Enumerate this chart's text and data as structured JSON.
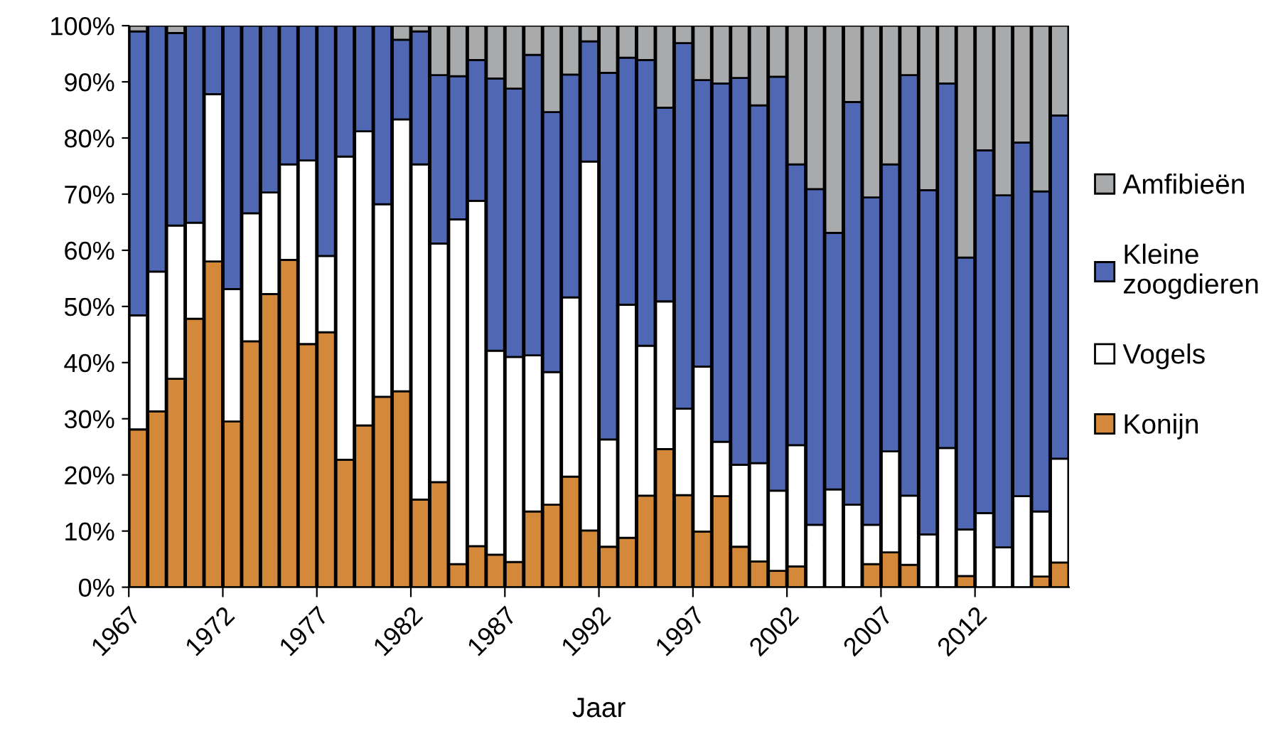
{
  "chart_data": {
    "type": "bar",
    "stacked": true,
    "xlabel": "Jaar",
    "categories": [
      "1967",
      null,
      null,
      null,
      null,
      "1972",
      null,
      null,
      null,
      null,
      "1977",
      null,
      null,
      null,
      null,
      "1982",
      null,
      null,
      null,
      null,
      "1987",
      null,
      null,
      null,
      null,
      "1992",
      null,
      null,
      null,
      null,
      "1997",
      null,
      null,
      null,
      null,
      "2002",
      null,
      null,
      null,
      null,
      "2007",
      null,
      null,
      null,
      null,
      "2012",
      null,
      null,
      null,
      null
    ],
    "series": [
      {
        "name": "Konijn",
        "color": "#d4883a",
        "values": [
          28.1,
          31.3,
          37.1,
          47.8,
          58.0,
          29.5,
          43.8,
          52.2,
          58.3,
          43.3,
          45.4,
          22.7,
          28.8,
          33.9,
          34.9,
          15.6,
          18.7,
          4.1,
          7.3,
          5.8,
          4.5,
          13.5,
          14.7,
          19.7,
          10.1,
          7.2,
          8.8,
          16.3,
          24.6,
          16.4,
          9.9,
          16.2,
          7.2,
          4.6,
          2.9,
          3.7,
          0,
          0,
          0,
          4.1,
          6.2,
          4.0,
          0,
          0,
          2.0,
          0,
          0,
          0,
          1.9,
          4.4
        ]
      },
      {
        "name": "Vogels",
        "color": "#ffffff",
        "values": [
          20.3,
          24.9,
          27.3,
          17.1,
          29.8,
          23.6,
          22.8,
          18.1,
          17.0,
          32.7,
          13.6,
          54.0,
          52.4,
          34.3,
          48.4,
          59.7,
          42.5,
          61.4,
          61.5,
          36.3,
          36.5,
          27.8,
          23.6,
          31.9,
          65.7,
          19.1,
          41.5,
          26.7,
          26.3,
          15.4,
          29.4,
          9.7,
          14.6,
          17.5,
          14.3,
          21.6,
          11.1,
          17.4,
          14.7,
          7.0,
          18.0,
          12.3,
          9.4,
          24.8,
          8.3,
          13.2,
          7.1,
          16.2,
          11.6,
          18.5
        ]
      },
      {
        "name": "Kleine\nzoogdieren",
        "color": "#5068b4",
        "values": [
          50.6,
          43.8,
          34.3,
          35.1,
          12.2,
          46.9,
          33.4,
          29.7,
          24.7,
          24.0,
          41.0,
          23.3,
          18.8,
          31.8,
          14.2,
          23.7,
          30.0,
          25.5,
          25.1,
          48.5,
          47.8,
          53.5,
          46.3,
          39.7,
          21.4,
          65.3,
          44.0,
          50.9,
          34.5,
          65.1,
          51.0,
          63.8,
          68.9,
          63.7,
          73.7,
          50.0,
          59.8,
          45.7,
          71.7,
          58.3,
          51.1,
          74.9,
          61.3,
          64.9,
          48.4,
          64.6,
          62.7,
          63.0,
          57.0,
          61.1
        ]
      },
      {
        "name": "Amfibieën",
        "color": "#a8aaab",
        "values": [
          1.0,
          0,
          1.3,
          0,
          0,
          0,
          0,
          0,
          0,
          0,
          0,
          0,
          0,
          0,
          2.5,
          1.0,
          8.8,
          9.0,
          6.1,
          9.4,
          11.2,
          5.2,
          15.4,
          8.7,
          2.8,
          8.4,
          5.7,
          6.1,
          14.6,
          3.1,
          9.7,
          10.3,
          9.3,
          14.2,
          9.1,
          24.7,
          29.1,
          36.9,
          13.6,
          30.6,
          24.7,
          8.8,
          29.3,
          10.3,
          41.3,
          22.2,
          30.2,
          20.8,
          29.5,
          16.0
        ]
      }
    ],
    "ylim": [
      0,
      100
    ],
    "yticks": [
      {
        "value": 0,
        "label": "0%"
      },
      {
        "value": 10,
        "label": "10%"
      },
      {
        "value": 20,
        "label": "20%"
      },
      {
        "value": 30,
        "label": "30%"
      },
      {
        "value": 40,
        "label": "40%"
      },
      {
        "value": 50,
        "label": "50%"
      },
      {
        "value": 60,
        "label": "60%"
      },
      {
        "value": 70,
        "label": "70%"
      },
      {
        "value": 80,
        "label": "80%"
      },
      {
        "value": 90,
        "label": "90%"
      },
      {
        "value": 100,
        "label": "100%"
      }
    ],
    "grid": false,
    "legend": "right"
  }
}
